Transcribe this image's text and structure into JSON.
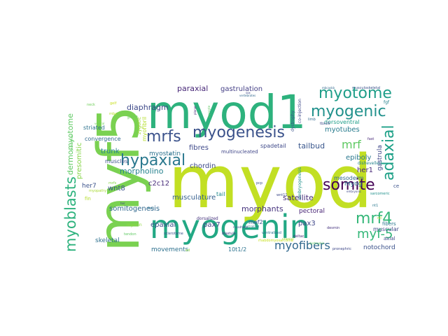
{
  "word_cloud": {
    "words": [
      {
        "text": "myod",
        "color": "#c2df23"
      },
      {
        "text": "myf5",
        "color": "#7ad151"
      },
      {
        "text": "myod1",
        "color": "#2db27d"
      },
      {
        "text": "myogenin",
        "color": "#22a884"
      },
      {
        "text": "myotome",
        "color": "#1f9e89"
      },
      {
        "text": "myogenic",
        "color": "#21918c"
      },
      {
        "text": "myogenesis",
        "color": "#3b528b"
      },
      {
        "text": "myoblasts",
        "color": "#2db27d"
      },
      {
        "text": "hypaxial",
        "color": "#2a788e"
      },
      {
        "text": "somite",
        "color": "#440154"
      },
      {
        "text": "adaxial",
        "color": "#1fa188"
      },
      {
        "text": "mrfs",
        "color": "#3b528b"
      },
      {
        "text": "mrf4",
        "color": "#35b779"
      },
      {
        "text": "myf-5",
        "color": "#35b779"
      },
      {
        "text": "myofibers",
        "color": "#31688e"
      },
      {
        "text": "mrf",
        "color": "#5ec962"
      },
      {
        "text": "dermomyotome",
        "color": "#5ec962"
      },
      {
        "text": "presomitic",
        "color": "#86d549"
      },
      {
        "text": "diaphragm",
        "color": "#3e4989"
      },
      {
        "text": "paraxial",
        "color": "#482878"
      },
      {
        "text": "gastrulation",
        "color": "#433e85"
      },
      {
        "text": "trunk",
        "color": "#26828e"
      },
      {
        "text": "morpholino",
        "color": "#26828e"
      },
      {
        "text": "musculature",
        "color": "#355f8d"
      },
      {
        "text": "somitogenesis",
        "color": "#31688e"
      },
      {
        "text": "satellite",
        "color": "#472c7a"
      },
      {
        "text": "morphants",
        "color": "#46337e"
      },
      {
        "text": "myotubes",
        "color": "#287c8e"
      },
      {
        "text": "epiboly",
        "color": "#2a788e"
      },
      {
        "text": "tailbud",
        "color": "#39568c"
      },
      {
        "text": "spadetail",
        "color": "#3e4989"
      },
      {
        "text": "fibres",
        "color": "#3e4989"
      },
      {
        "text": "myostatin",
        "color": "#2c728e"
      },
      {
        "text": "chordin",
        "color": "#3e4989"
      },
      {
        "text": "epaxial",
        "color": "#3b528b"
      },
      {
        "text": "pax7",
        "color": "#404688"
      },
      {
        "text": "pax3",
        "color": "#3f4788"
      },
      {
        "text": "wnt8",
        "color": "#3b528b"
      },
      {
        "text": "her1",
        "color": "#482878"
      },
      {
        "text": "her7",
        "color": "#3b528b"
      },
      {
        "text": "myog",
        "color": "#2c728e"
      },
      {
        "text": "c2c12",
        "color": "#472c7a"
      },
      {
        "text": "skeletal",
        "color": "#2d708e"
      },
      {
        "text": "movements",
        "color": "#2d708e"
      },
      {
        "text": "notochord",
        "color": "#3b528b"
      },
      {
        "text": "mesoderm",
        "color": "#31688e"
      },
      {
        "text": "pectoral",
        "color": "#482475"
      },
      {
        "text": "mef2",
        "color": "#3b528b"
      },
      {
        "text": "tail",
        "color": "#238a8d"
      },
      {
        "text": "10t1/2",
        "color": "#2c728e"
      },
      {
        "text": "muscular",
        "color": "#3e4989"
      },
      {
        "text": "gastrula",
        "color": "#3f4788"
      },
      {
        "text": "muscles",
        "color": "#3b528b"
      },
      {
        "text": "convergence",
        "color": "#31688e"
      },
      {
        "text": "striated",
        "color": "#2c728e"
      },
      {
        "text": "myofibril",
        "color": "#b5de2b"
      },
      {
        "text": "zygotic",
        "color": "#a0da39"
      },
      {
        "text": "psm",
        "color": "#6ece58"
      },
      {
        "text": "dorsoventral",
        "color": "#1f9e89"
      },
      {
        "text": "dystrophy",
        "color": "#3b528b"
      },
      {
        "text": "co-injection",
        "color": "#3e4989"
      },
      {
        "text": "multinucleated",
        "color": "#404688"
      },
      {
        "text": "dorsalized",
        "color": "#46337e"
      },
      {
        "text": "embryogenesis",
        "color": "#21918c"
      },
      {
        "text": "fibers",
        "color": "#2a788e"
      },
      {
        "text": "axial",
        "color": "#3f4788"
      },
      {
        "text": "dishevelled",
        "color": "#26828e"
      },
      {
        "text": "ce",
        "color": "#3b528b"
      },
      {
        "text": "fin",
        "color": "#b5de2b"
      },
      {
        "text": "myosin",
        "color": "#90d743"
      },
      {
        "text": "myopathy",
        "color": "#a8db34"
      },
      {
        "text": "pronephric",
        "color": "#3f4788"
      },
      {
        "text": "rhabdomyosarcoma",
        "color": "#c8e020"
      },
      {
        "text": "desmin",
        "color": "#46337e"
      },
      {
        "text": "nt1",
        "color": "#2a788e"
      },
      {
        "text": "ventralized",
        "color": "#2c728e"
      },
      {
        "text": "wnt11",
        "color": "#3e4989"
      },
      {
        "text": "deltac",
        "color": "#482878"
      },
      {
        "text": "sclerotome",
        "color": "#3b528b"
      },
      {
        "text": "tendon",
        "color": "#5ec962"
      },
      {
        "text": "blastula",
        "color": "#453781"
      },
      {
        "text": "limb",
        "color": "#31688e"
      },
      {
        "text": "fast",
        "color": "#482878"
      },
      {
        "text": "posterior",
        "color": "#5ec962"
      },
      {
        "text": "sarcomeric",
        "color": "#21918c"
      },
      {
        "text": "fgf",
        "color": "#26828e"
      },
      {
        "text": "neck",
        "color": "#6ece58"
      },
      {
        "text": "mrfs",
        "color": "#86d549"
      },
      {
        "text": "pcp",
        "color": "#3b528b"
      },
      {
        "text": "mbx",
        "color": "#b5de2b"
      },
      {
        "text": "cranial",
        "color": "#a0da39"
      },
      {
        "text": "gelf",
        "color": "#c8e020"
      },
      {
        "text": "ventralized",
        "color": "#26828e"
      },
      {
        "text": "sox",
        "color": "#3f4788"
      },
      {
        "text": "dystrophic",
        "color": "#5ec962"
      },
      {
        "text": "embryonic",
        "color": "#3e4989"
      },
      {
        "text": "musculoskeletal",
        "color": "#3b528b"
      },
      {
        "text": "mbcaskb",
        "color": "#31688e"
      },
      {
        "text": "fibril",
        "color": "#2c728e"
      },
      {
        "text": "tbx16",
        "color": "#3e4989"
      },
      {
        "text": "planar",
        "color": "#482878"
      },
      {
        "text": "myocyte",
        "color": "#5ec962"
      },
      {
        "text": "ventral",
        "color": "#6ece58"
      },
      {
        "text": "ed",
        "color": "#90d743"
      },
      {
        "text": "her",
        "color": "#3e4989"
      },
      {
        "text": "n-cadherin",
        "color": "#3f4788"
      },
      {
        "text": "vertebrates",
        "color": "#31688e"
      },
      {
        "text": "ntl",
        "color": "#b5de2b"
      }
    ]
  }
}
